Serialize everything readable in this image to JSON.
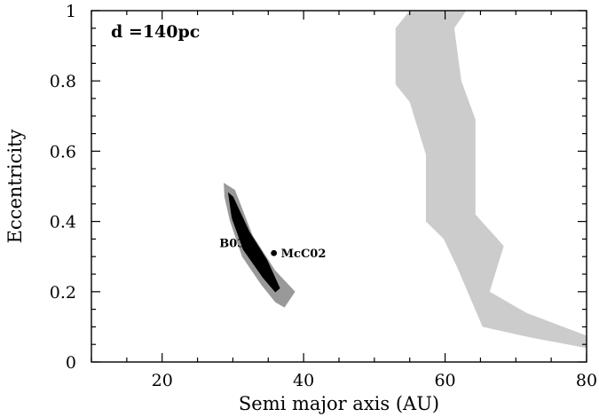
{
  "chart_data": {
    "type": "scatter",
    "title": "",
    "xlabel": "Semi major axis (AU)",
    "ylabel": "Eccentricity",
    "xlim": [
      10,
      80
    ],
    "ylim": [
      0,
      1
    ],
    "xticks": [
      20,
      40,
      60,
      80
    ],
    "yticks": [
      0,
      0.2,
      0.4,
      0.6,
      0.8,
      1
    ],
    "x_tick_labels": [
      "20",
      "40",
      "60",
      "80"
    ],
    "y_tick_labels": [
      "0",
      "0.2",
      "0.4",
      "0.6",
      "0.8",
      "1"
    ],
    "minor_ticks": true,
    "grid": false,
    "annotation": "d =140pc",
    "colors": {
      "light_region": "#cccccc",
      "dark_region": "#999999",
      "orbit": "#000000"
    },
    "regions": [
      {
        "shade": "light",
        "polygon": [
          [
            53,
            0.95
          ],
          [
            55,
            1.0
          ],
          [
            63,
            1.0
          ],
          [
            61.3,
            0.95
          ],
          [
            62.3,
            0.8
          ],
          [
            64.3,
            0.69
          ],
          [
            64.3,
            0.42
          ],
          [
            68.3,
            0.33
          ],
          [
            66.3,
            0.2
          ],
          [
            71.5,
            0.14
          ],
          [
            80,
            0.075
          ],
          [
            80,
            0.04
          ],
          [
            72,
            0.07
          ],
          [
            65.3,
            0.1
          ],
          [
            61.7,
            0.27
          ],
          [
            59.8,
            0.35
          ],
          [
            57.3,
            0.4
          ],
          [
            57.3,
            0.59
          ],
          [
            55,
            0.74
          ],
          [
            53,
            0.79
          ]
        ]
      },
      {
        "shade": "dark",
        "polygon": [
          [
            28.7,
            0.51
          ],
          [
            30.3,
            0.49
          ],
          [
            32.8,
            0.36
          ],
          [
            36,
            0.26
          ],
          [
            38.8,
            0.2
          ],
          [
            37.3,
            0.155
          ],
          [
            36,
            0.17
          ],
          [
            34,
            0.22
          ],
          [
            31.3,
            0.3
          ],
          [
            29.6,
            0.4
          ],
          [
            28.8,
            0.47
          ]
        ]
      },
      {
        "shade": "outline",
        "polygon": [
          [
            29.4,
            0.48
          ],
          [
            30,
            0.47
          ],
          [
            32.3,
            0.37
          ],
          [
            34.8,
            0.29
          ],
          [
            36.6,
            0.21
          ],
          [
            36,
            0.2
          ],
          [
            34.3,
            0.24
          ],
          [
            31.5,
            0.32
          ],
          [
            29.9,
            0.41
          ]
        ]
      }
    ],
    "points": [
      {
        "label": "B03",
        "x": 32.5,
        "y": 0.34
      },
      {
        "label": "McC02",
        "x": 35.8,
        "y": 0.31
      }
    ]
  }
}
